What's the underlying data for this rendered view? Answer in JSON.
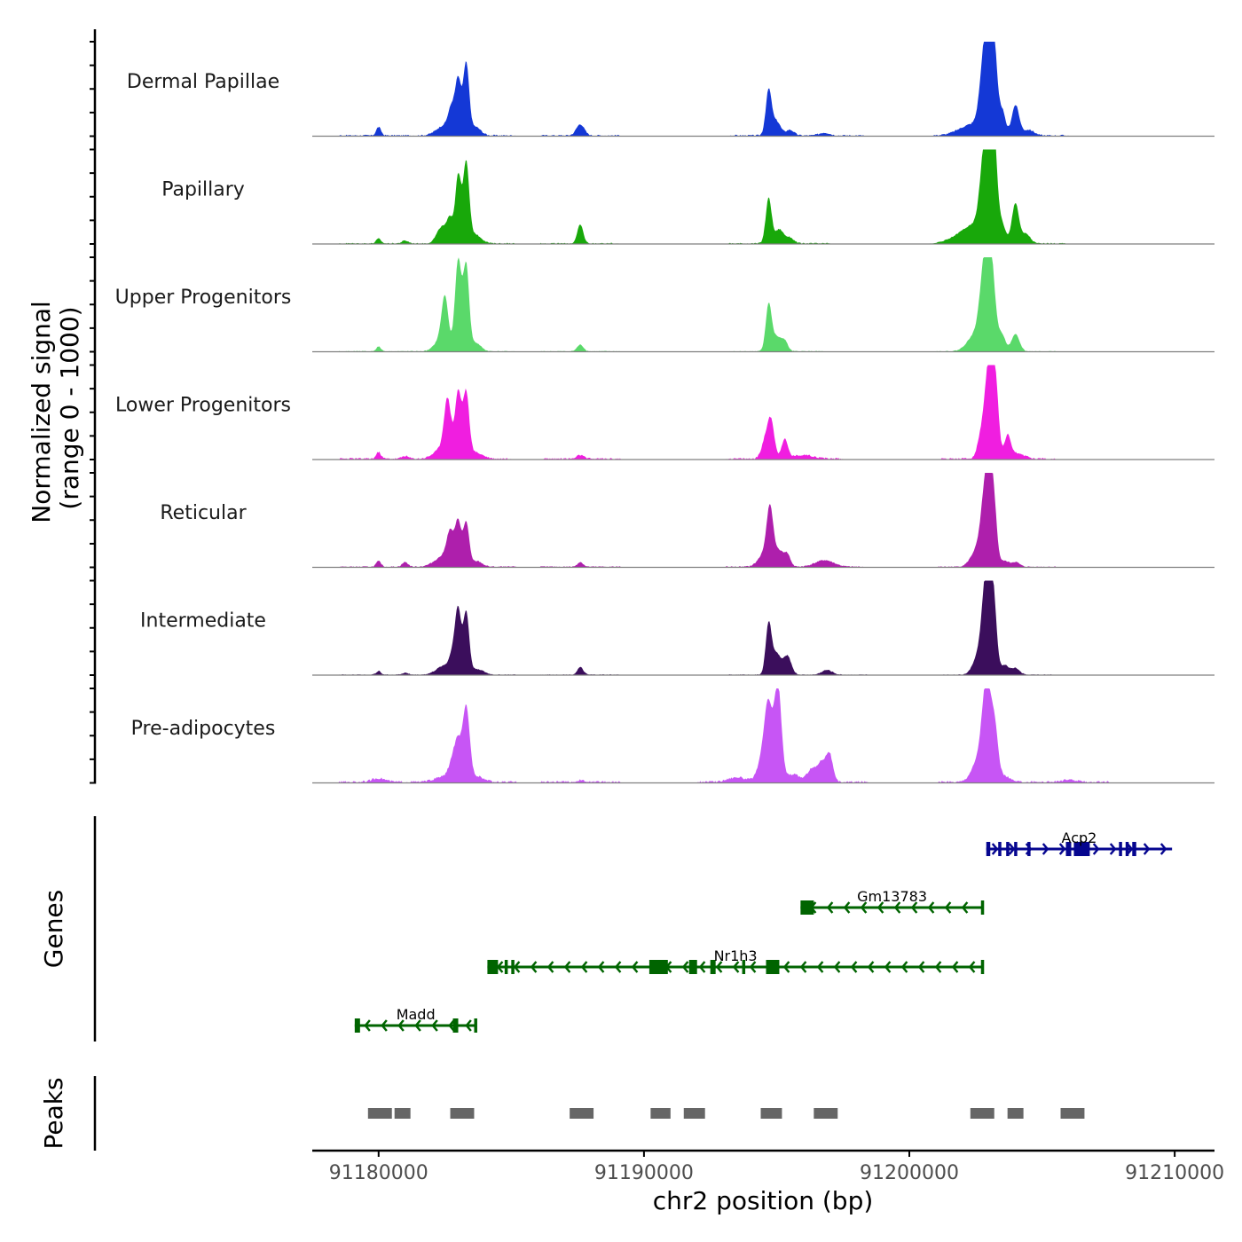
{
  "chart_data": {
    "type": "area",
    "title": "",
    "xlabel": "chr2 position (bp)",
    "ylabel_signal": "Normalized signal\n(range 0 - 1000)",
    "ylabel_signal_lines": [
      "Normalized signal",
      "(range 0 - 1000)"
    ],
    "ylabel_genes": "Genes",
    "ylabel_peaks": "Peaks",
    "chrom": "chr2",
    "xlim": [
      91177500,
      91211500
    ],
    "x_ticks": [
      91180000,
      91190000,
      91200000,
      91210000
    ],
    "x_tick_labels": [
      "91180000",
      "91190000",
      "91200000",
      "91210000"
    ],
    "ylim": [
      0,
      1000
    ],
    "series": [
      {
        "name": "Dermal Papillae",
        "color": "#1438d6",
        "peaks": [
          {
            "pos": 91180000,
            "h": 90,
            "w": 90
          },
          {
            "pos": 91182500,
            "h": 110,
            "w": 300
          },
          {
            "pos": 91182750,
            "h": 230,
            "w": 120
          },
          {
            "pos": 91183000,
            "h": 560,
            "w": 110
          },
          {
            "pos": 91183300,
            "h": 750,
            "w": 110
          },
          {
            "pos": 91183650,
            "h": 90,
            "w": 200
          },
          {
            "pos": 91187600,
            "h": 120,
            "w": 150
          },
          {
            "pos": 91194700,
            "h": 480,
            "w": 110
          },
          {
            "pos": 91195000,
            "h": 150,
            "w": 150
          },
          {
            "pos": 91195500,
            "h": 60,
            "w": 150
          },
          {
            "pos": 91196800,
            "h": 30,
            "w": 200
          },
          {
            "pos": 91202400,
            "h": 120,
            "w": 500
          },
          {
            "pos": 91202800,
            "h": 580,
            "w": 160
          },
          {
            "pos": 91203000,
            "h": 880,
            "w": 150
          },
          {
            "pos": 91203200,
            "h": 700,
            "w": 120
          },
          {
            "pos": 91203500,
            "h": 250,
            "w": 120
          },
          {
            "pos": 91204000,
            "h": 320,
            "w": 140
          },
          {
            "pos": 91204500,
            "h": 60,
            "w": 200
          }
        ],
        "noise": 10
      },
      {
        "name": "Papillary",
        "color": "#18a80a",
        "peaks": [
          {
            "pos": 91180000,
            "h": 50,
            "w": 90
          },
          {
            "pos": 91181000,
            "h": 30,
            "w": 120
          },
          {
            "pos": 91182400,
            "h": 180,
            "w": 200
          },
          {
            "pos": 91182700,
            "h": 220,
            "w": 110
          },
          {
            "pos": 91183000,
            "h": 720,
            "w": 110
          },
          {
            "pos": 91183300,
            "h": 820,
            "w": 110
          },
          {
            "pos": 91183600,
            "h": 100,
            "w": 250
          },
          {
            "pos": 91187600,
            "h": 200,
            "w": 110
          },
          {
            "pos": 91194700,
            "h": 480,
            "w": 110
          },
          {
            "pos": 91195100,
            "h": 150,
            "w": 160
          },
          {
            "pos": 91195500,
            "h": 60,
            "w": 150
          },
          {
            "pos": 91202500,
            "h": 200,
            "w": 600
          },
          {
            "pos": 91202800,
            "h": 580,
            "w": 160
          },
          {
            "pos": 91203000,
            "h": 920,
            "w": 150
          },
          {
            "pos": 91203200,
            "h": 800,
            "w": 120
          },
          {
            "pos": 91203500,
            "h": 160,
            "w": 120
          },
          {
            "pos": 91204000,
            "h": 420,
            "w": 130
          },
          {
            "pos": 91204400,
            "h": 100,
            "w": 160
          }
        ],
        "noise": 8
      },
      {
        "name": "Upper Progenitors",
        "color": "#5ad96a",
        "peaks": [
          {
            "pos": 91180000,
            "h": 50,
            "w": 90
          },
          {
            "pos": 91182400,
            "h": 150,
            "w": 250
          },
          {
            "pos": 91182500,
            "h": 460,
            "w": 120
          },
          {
            "pos": 91183000,
            "h": 960,
            "w": 120
          },
          {
            "pos": 91183300,
            "h": 890,
            "w": 110
          },
          {
            "pos": 91183650,
            "h": 90,
            "w": 200
          },
          {
            "pos": 91187600,
            "h": 70,
            "w": 120
          },
          {
            "pos": 91194700,
            "h": 500,
            "w": 110
          },
          {
            "pos": 91195000,
            "h": 150,
            "w": 150
          },
          {
            "pos": 91195300,
            "h": 110,
            "w": 120
          },
          {
            "pos": 91202500,
            "h": 180,
            "w": 300
          },
          {
            "pos": 91202800,
            "h": 600,
            "w": 160
          },
          {
            "pos": 91203050,
            "h": 1000,
            "w": 170
          },
          {
            "pos": 91203500,
            "h": 160,
            "w": 130
          },
          {
            "pos": 91204000,
            "h": 180,
            "w": 150
          }
        ],
        "noise": 6
      },
      {
        "name": "Lower Progenitors",
        "color": "#f01ee0",
        "peaks": [
          {
            "pos": 91180000,
            "h": 70,
            "w": 90
          },
          {
            "pos": 91181000,
            "h": 30,
            "w": 120
          },
          {
            "pos": 91182400,
            "h": 110,
            "w": 300
          },
          {
            "pos": 91182600,
            "h": 560,
            "w": 130
          },
          {
            "pos": 91183000,
            "h": 690,
            "w": 120
          },
          {
            "pos": 91183300,
            "h": 660,
            "w": 110
          },
          {
            "pos": 91183600,
            "h": 70,
            "w": 300
          },
          {
            "pos": 91187600,
            "h": 40,
            "w": 120
          },
          {
            "pos": 91194600,
            "h": 220,
            "w": 150
          },
          {
            "pos": 91194800,
            "h": 340,
            "w": 120
          },
          {
            "pos": 91195300,
            "h": 200,
            "w": 120
          },
          {
            "pos": 91196000,
            "h": 40,
            "w": 400
          },
          {
            "pos": 91202700,
            "h": 220,
            "w": 140
          },
          {
            "pos": 91203000,
            "h": 1000,
            "w": 150
          },
          {
            "pos": 91203250,
            "h": 700,
            "w": 120
          },
          {
            "pos": 91203700,
            "h": 220,
            "w": 110
          },
          {
            "pos": 91204000,
            "h": 60,
            "w": 300
          }
        ],
        "noise": 12
      },
      {
        "name": "Reticular",
        "color": "#ae1fac",
        "peaks": [
          {
            "pos": 91180000,
            "h": 60,
            "w": 90
          },
          {
            "pos": 91181000,
            "h": 50,
            "w": 110
          },
          {
            "pos": 91182500,
            "h": 120,
            "w": 350
          },
          {
            "pos": 91182700,
            "h": 290,
            "w": 130
          },
          {
            "pos": 91183000,
            "h": 440,
            "w": 110
          },
          {
            "pos": 91183300,
            "h": 460,
            "w": 110
          },
          {
            "pos": 91183700,
            "h": 60,
            "w": 200
          },
          {
            "pos": 91187600,
            "h": 50,
            "w": 110
          },
          {
            "pos": 91194600,
            "h": 160,
            "w": 250
          },
          {
            "pos": 91194750,
            "h": 520,
            "w": 120
          },
          {
            "pos": 91195100,
            "h": 150,
            "w": 150
          },
          {
            "pos": 91195400,
            "h": 130,
            "w": 120
          },
          {
            "pos": 91196800,
            "h": 70,
            "w": 350
          },
          {
            "pos": 91202600,
            "h": 200,
            "w": 250
          },
          {
            "pos": 91202900,
            "h": 860,
            "w": 160
          },
          {
            "pos": 91203150,
            "h": 720,
            "w": 130
          },
          {
            "pos": 91203600,
            "h": 60,
            "w": 150
          },
          {
            "pos": 91204000,
            "h": 50,
            "w": 150
          }
        ],
        "noise": 8
      },
      {
        "name": "Intermediate",
        "color": "#3b0e5c",
        "peaks": [
          {
            "pos": 91180000,
            "h": 40,
            "w": 90
          },
          {
            "pos": 91181000,
            "h": 20,
            "w": 120
          },
          {
            "pos": 91182500,
            "h": 100,
            "w": 300
          },
          {
            "pos": 91182800,
            "h": 180,
            "w": 120
          },
          {
            "pos": 91183000,
            "h": 650,
            "w": 110
          },
          {
            "pos": 91183300,
            "h": 650,
            "w": 110
          },
          {
            "pos": 91183700,
            "h": 60,
            "w": 250
          },
          {
            "pos": 91187600,
            "h": 80,
            "w": 110
          },
          {
            "pos": 91194700,
            "h": 540,
            "w": 110
          },
          {
            "pos": 91195000,
            "h": 220,
            "w": 150
          },
          {
            "pos": 91195400,
            "h": 200,
            "w": 150
          },
          {
            "pos": 91196900,
            "h": 50,
            "w": 200
          },
          {
            "pos": 91202600,
            "h": 200,
            "w": 200
          },
          {
            "pos": 91202900,
            "h": 1000,
            "w": 150
          },
          {
            "pos": 91203150,
            "h": 820,
            "w": 130
          },
          {
            "pos": 91203600,
            "h": 100,
            "w": 150
          },
          {
            "pos": 91204000,
            "h": 70,
            "w": 150
          }
        ],
        "noise": 6
      },
      {
        "name": "Pre-adipocytes",
        "color": "#c755f5",
        "peaks": [
          {
            "pos": 91180000,
            "h": 40,
            "w": 250
          },
          {
            "pos": 91182500,
            "h": 60,
            "w": 350
          },
          {
            "pos": 91182800,
            "h": 200,
            "w": 140
          },
          {
            "pos": 91183000,
            "h": 340,
            "w": 120
          },
          {
            "pos": 91183300,
            "h": 780,
            "w": 130
          },
          {
            "pos": 91183700,
            "h": 60,
            "w": 250
          },
          {
            "pos": 91187600,
            "h": 20,
            "w": 110
          },
          {
            "pos": 91193500,
            "h": 50,
            "w": 350
          },
          {
            "pos": 91194500,
            "h": 250,
            "w": 200
          },
          {
            "pos": 91194700,
            "h": 700,
            "w": 150
          },
          {
            "pos": 91195050,
            "h": 1000,
            "w": 130
          },
          {
            "pos": 91195600,
            "h": 80,
            "w": 300
          },
          {
            "pos": 91196300,
            "h": 120,
            "w": 150
          },
          {
            "pos": 91196700,
            "h": 220,
            "w": 180
          },
          {
            "pos": 91197000,
            "h": 260,
            "w": 120
          },
          {
            "pos": 91202600,
            "h": 220,
            "w": 250
          },
          {
            "pos": 91202900,
            "h": 930,
            "w": 160
          },
          {
            "pos": 91203200,
            "h": 560,
            "w": 140
          },
          {
            "pos": 91203600,
            "h": 60,
            "w": 200
          },
          {
            "pos": 91206000,
            "h": 20,
            "w": 300
          }
        ],
        "noise": 14
      }
    ],
    "genes": [
      {
        "name": "Acp2",
        "strand": "+",
        "color": "#05058f",
        "start": 91202900,
        "end": 91209900,
        "exons": [
          [
            91202900,
            91203050
          ],
          [
            91203350,
            91203450
          ],
          [
            91203650,
            91203750
          ],
          [
            91203950,
            91204050
          ],
          [
            91204450,
            91204550
          ],
          [
            91205900,
            91206100
          ],
          [
            91206200,
            91206800
          ],
          [
            91207900,
            91208000
          ],
          [
            91208150,
            91208250
          ],
          [
            91208400,
            91208550
          ]
        ]
      },
      {
        "name": "Gm13783",
        "strand": "-",
        "color": "#006400",
        "start": 91195900,
        "end": 91202800,
        "exons": [
          [
            91195900,
            91196400
          ],
          [
            91202700,
            91202800
          ]
        ]
      },
      {
        "name": "Nr1h3",
        "strand": "-",
        "color": "#006400",
        "start": 91184100,
        "end": 91202800,
        "exons": [
          [
            91184100,
            91184500
          ],
          [
            91184750,
            91184850
          ],
          [
            91185000,
            91185100
          ],
          [
            91190200,
            91190900
          ],
          [
            91191700,
            91192000
          ],
          [
            91192500,
            91192700
          ],
          [
            91193700,
            91193800
          ],
          [
            91194600,
            91195100
          ],
          [
            91202700,
            91202800
          ]
        ]
      },
      {
        "name": "Madd",
        "strand": "-",
        "color": "#006400",
        "start": 91179100,
        "end": 91183700,
        "exons": [
          [
            91179100,
            91179300
          ],
          [
            91182800,
            91183000
          ],
          [
            91183600,
            91183700
          ]
        ]
      }
    ],
    "peak_regions": [
      [
        91179600,
        91180500
      ],
      [
        91180600,
        91181200
      ],
      [
        91182700,
        91183600
      ],
      [
        91187200,
        91188100
      ],
      [
        91190250,
        91191000
      ],
      [
        91191500,
        91192300
      ],
      [
        91194400,
        91195200
      ],
      [
        91196400,
        91197300
      ],
      [
        91202300,
        91203200
      ],
      [
        91203700,
        91204300
      ],
      [
        91205700,
        91206600
      ]
    ],
    "colors": {
      "axis": "#000000",
      "baseline": "#7f7f7f",
      "peak_region": "#666666",
      "gene_plus": "#05058f",
      "gene_minus": "#006400"
    }
  }
}
